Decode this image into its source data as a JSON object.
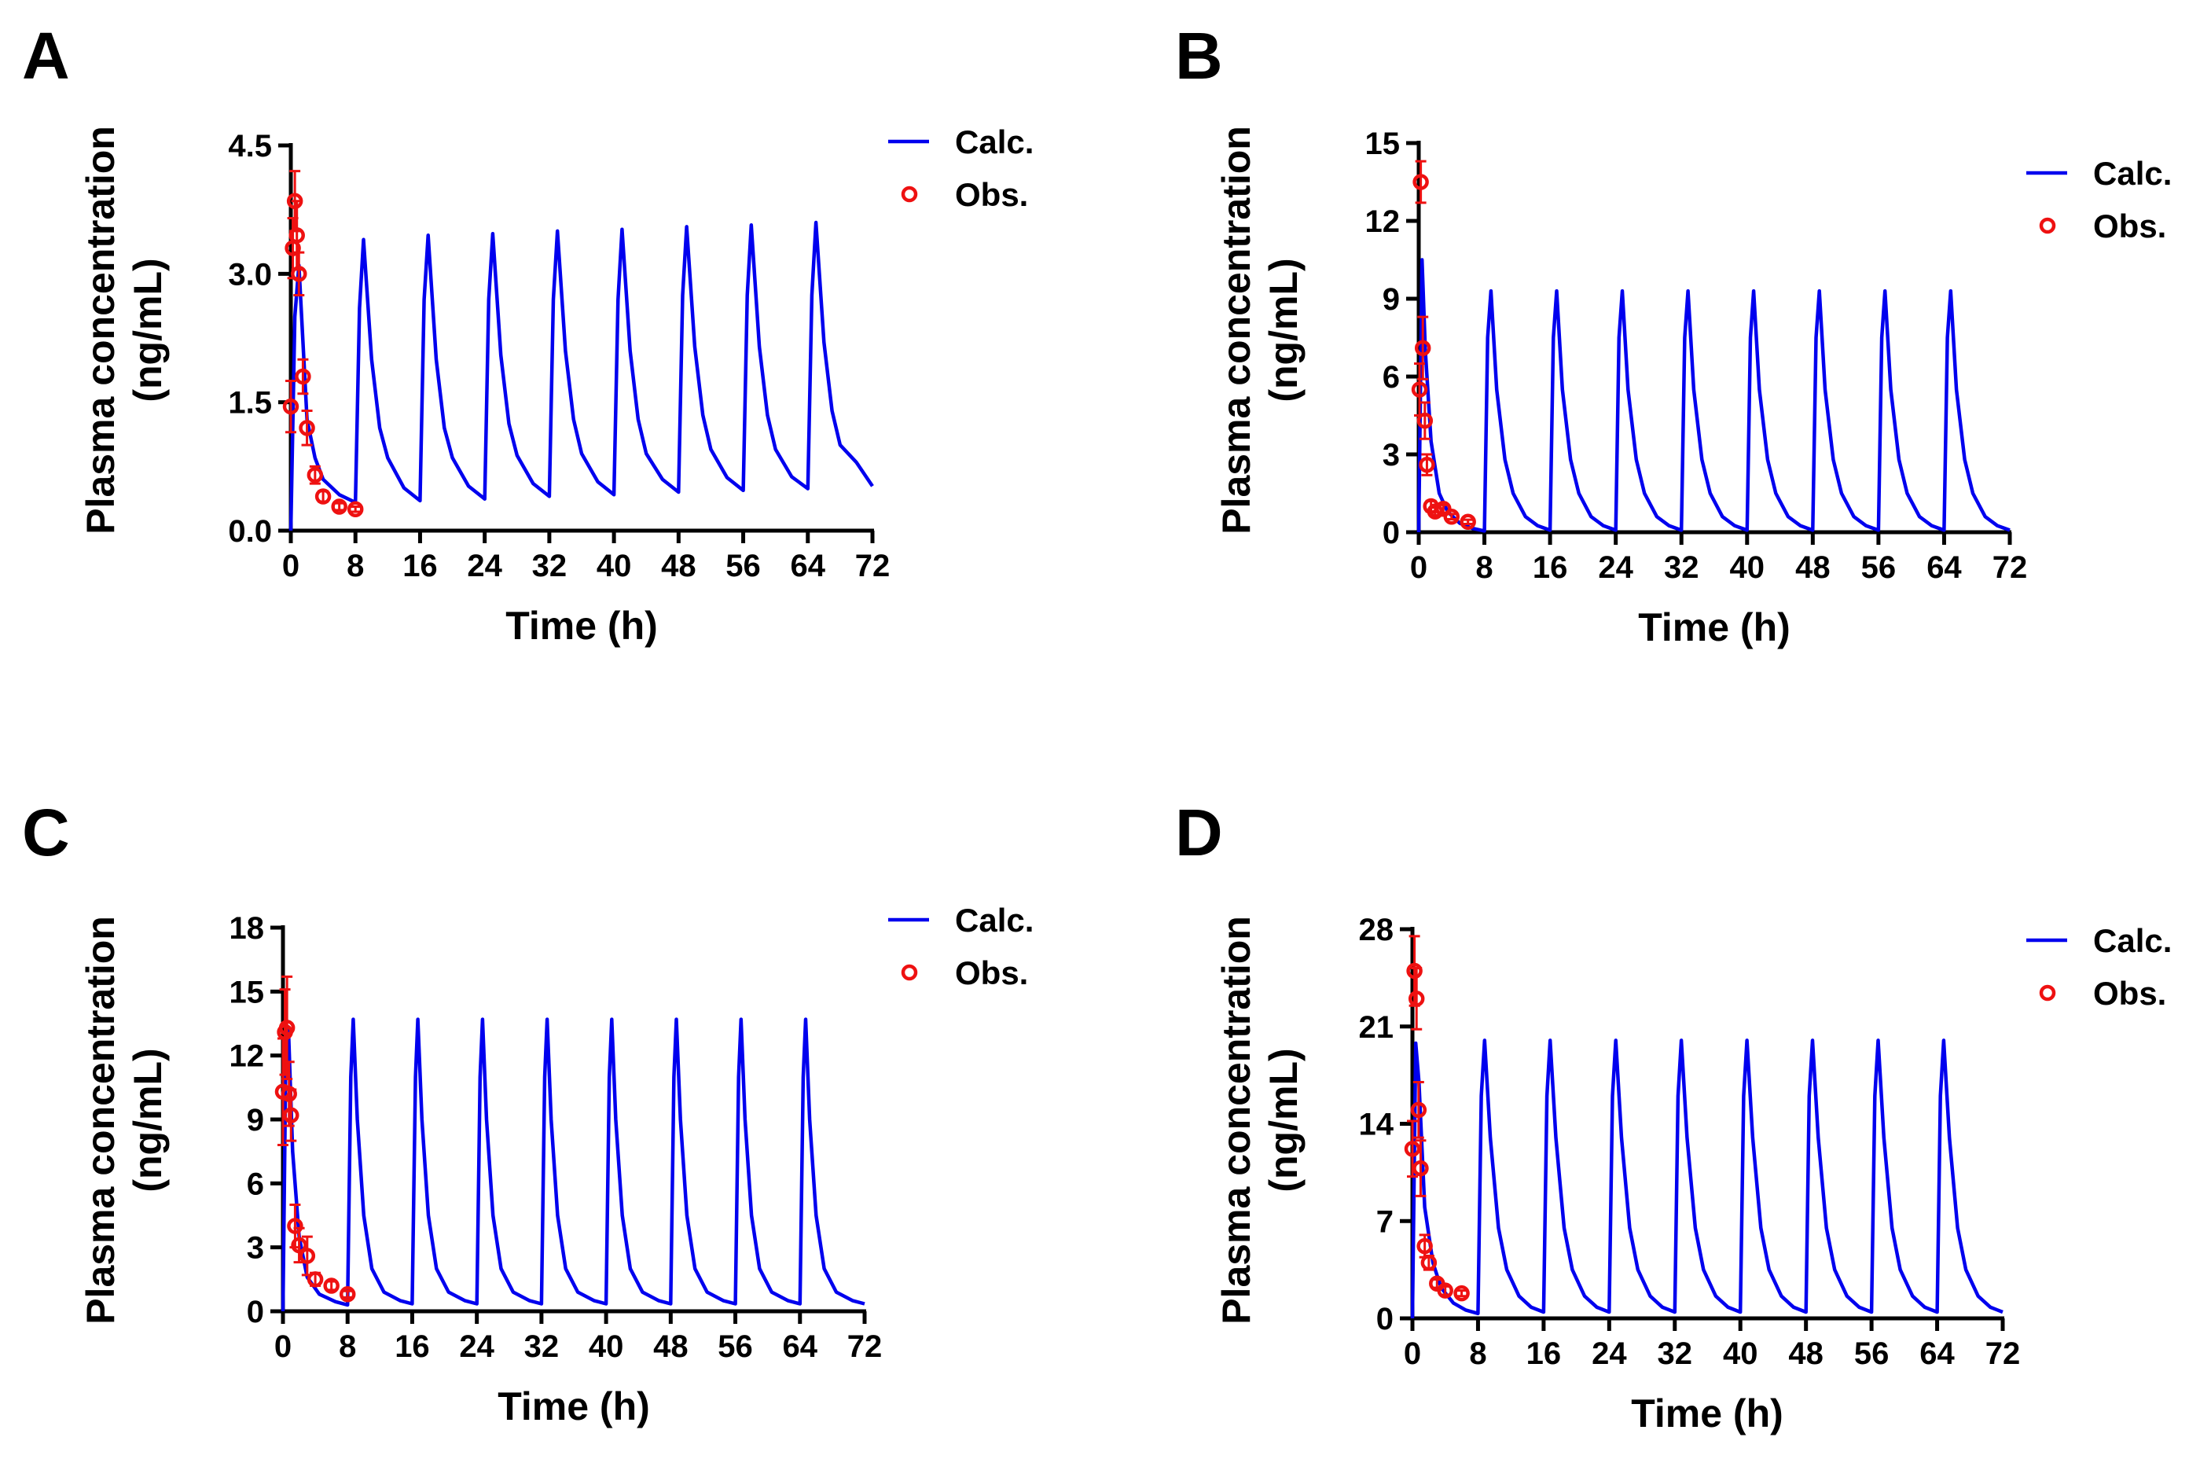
{
  "colors": {
    "calc": "#0000ee",
    "obs": "#ee1111",
    "axis": "#000000"
  },
  "chart_data": [
    {
      "type": "line",
      "panel": "A",
      "xlabel": "Time (h)",
      "ylabel_line1": "Plasma concentration",
      "ylabel_line2": "(ng/mL)",
      "xlim": [
        0,
        72
      ],
      "ylim": [
        0,
        4.5
      ],
      "x_ticks": [
        0,
        8,
        16,
        24,
        32,
        40,
        48,
        56,
        64,
        72
      ],
      "x_tick_labels": [
        "0",
        "8",
        "16",
        "24",
        "32",
        "40",
        "48",
        "56",
        "64",
        "72"
      ],
      "y_ticks": [
        0,
        1.5,
        3,
        4.5
      ],
      "y_tick_labels": [
        "0.0",
        "1.5",
        "3.0",
        "4.5"
      ],
      "legend": {
        "calc_label": "Calc.",
        "obs_label": "Obs.",
        "placement": "top-right"
      },
      "series": [
        {
          "name": "Calc.",
          "kind": "line",
          "x": [
            0,
            0.5,
            1,
            2,
            3,
            4,
            6,
            8,
            8.5,
            9,
            10,
            11,
            12,
            14,
            16,
            16.5,
            17,
            18,
            19,
            20,
            22,
            24,
            24.5,
            25,
            26,
            27,
            28,
            30,
            32,
            32.5,
            33,
            34,
            35,
            36,
            38,
            40,
            40.5,
            41,
            42,
            43,
            44,
            46,
            48,
            48.5,
            49,
            50,
            51,
            52,
            54,
            56,
            56.5,
            57,
            58,
            59,
            60,
            62,
            64,
            64.5,
            65,
            66,
            67,
            68,
            70,
            72
          ],
          "y": [
            0,
            2.5,
            3.1,
            1.3,
            0.85,
            0.6,
            0.42,
            0.33,
            2.6,
            3.4,
            2.0,
            1.2,
            0.85,
            0.5,
            0.35,
            2.7,
            3.45,
            2.0,
            1.2,
            0.85,
            0.52,
            0.37,
            2.7,
            3.47,
            2.05,
            1.25,
            0.88,
            0.55,
            0.4,
            2.7,
            3.5,
            2.1,
            1.3,
            0.9,
            0.57,
            0.42,
            2.7,
            3.52,
            2.1,
            1.3,
            0.9,
            0.6,
            0.45,
            2.75,
            3.55,
            2.15,
            1.35,
            0.95,
            0.62,
            0.47,
            2.75,
            3.57,
            2.15,
            1.35,
            0.95,
            0.63,
            0.49,
            2.75,
            3.6,
            2.2,
            1.4,
            1.0,
            0.8,
            0.52
          ]
        },
        {
          "name": "Obs.",
          "kind": "scatter",
          "x": [
            0.0,
            0.25,
            0.5,
            0.75,
            1.0,
            1.5,
            2.0,
            3.0,
            4.0,
            6.0,
            8.0
          ],
          "y": [
            1.45,
            3.3,
            3.85,
            3.45,
            3.0,
            1.8,
            1.2,
            0.65,
            0.4,
            0.28,
            0.25
          ],
          "err": [
            0.3,
            0.35,
            0.35,
            0.4,
            0.25,
            0.2,
            0.2,
            0.1,
            0.06,
            0.04,
            0.03
          ]
        }
      ]
    },
    {
      "type": "line",
      "panel": "B",
      "xlabel": "Time (h)",
      "ylabel_line1": "Plasma concentration",
      "ylabel_line2": "(ng/mL)",
      "xlim": [
        0,
        72
      ],
      "ylim": [
        0,
        15
      ],
      "x_ticks": [
        0,
        8,
        16,
        24,
        32,
        40,
        48,
        56,
        64,
        72
      ],
      "x_tick_labels": [
        "0",
        "8",
        "16",
        "24",
        "32",
        "40",
        "48",
        "56",
        "64",
        "72"
      ],
      "y_ticks": [
        0,
        3,
        6,
        9,
        12,
        15
      ],
      "y_tick_labels": [
        "0",
        "3",
        "6",
        "9",
        "12",
        "15"
      ],
      "legend": {
        "calc_label": "Calc.",
        "obs_label": "Obs.",
        "placement": "top-right"
      },
      "series": [
        {
          "name": "Calc.",
          "kind": "line",
          "x": [
            0,
            0.4,
            0.8,
            1.5,
            2.5,
            3.5,
            5,
            6.5,
            8,
            8.4,
            8.8,
            9.5,
            10.5,
            11.5,
            13,
            14.5,
            16,
            16.4,
            16.8,
            17.5,
            18.5,
            19.5,
            21,
            22.5,
            24,
            24.4,
            24.8,
            25.5,
            26.5,
            27.5,
            29,
            30.5,
            32,
            32.4,
            32.8,
            33.5,
            34.5,
            35.5,
            37,
            38.5,
            40,
            40.4,
            40.8,
            41.5,
            42.5,
            43.5,
            45,
            46.5,
            48,
            48.4,
            48.8,
            49.5,
            50.5,
            51.5,
            53,
            54.5,
            56,
            56.4,
            56.8,
            57.5,
            58.5,
            59.5,
            61,
            62.5,
            64,
            64.4,
            64.8,
            65.5,
            66.5,
            67.5,
            69,
            70.5,
            72
          ],
          "y": [
            0,
            10.5,
            7.0,
            3.5,
            1.5,
            0.8,
            0.35,
            0.15,
            0.05,
            7.5,
            9.3,
            5.5,
            2.8,
            1.5,
            0.6,
            0.25,
            0.08,
            7.5,
            9.3,
            5.5,
            2.8,
            1.5,
            0.6,
            0.25,
            0.08,
            7.5,
            9.3,
            5.5,
            2.8,
            1.5,
            0.6,
            0.25,
            0.08,
            7.5,
            9.3,
            5.5,
            2.8,
            1.5,
            0.6,
            0.25,
            0.08,
            7.5,
            9.3,
            5.5,
            2.8,
            1.5,
            0.6,
            0.25,
            0.08,
            7.5,
            9.3,
            5.5,
            2.8,
            1.5,
            0.6,
            0.25,
            0.08,
            7.5,
            9.3,
            5.5,
            2.8,
            1.5,
            0.6,
            0.25,
            0.08,
            7.5,
            9.3,
            5.5,
            2.8,
            1.5,
            0.6,
            0.25,
            0.08
          ]
        },
        {
          "name": "Obs.",
          "kind": "scatter",
          "x": [
            0.1,
            0.25,
            0.5,
            0.75,
            1.0,
            1.5,
            2.0,
            3.0,
            4.0,
            6.0
          ],
          "y": [
            5.5,
            13.5,
            7.1,
            4.3,
            2.6,
            1.0,
            0.8,
            0.9,
            0.6,
            0.4
          ],
          "err": [
            1.0,
            0.8,
            1.2,
            0.7,
            0.4,
            0.2,
            0.15,
            0.15,
            0.1,
            0.08
          ]
        }
      ]
    },
    {
      "type": "line",
      "panel": "C",
      "xlabel": "Time (h)",
      "ylabel_line1": "Plasma concentration",
      "ylabel_line2": "(ng/mL)",
      "xlim": [
        0,
        72
      ],
      "ylim": [
        0,
        18
      ],
      "x_ticks": [
        0,
        8,
        16,
        24,
        32,
        40,
        48,
        56,
        64,
        72
      ],
      "x_tick_labels": [
        "0",
        "8",
        "16",
        "24",
        "32",
        "40",
        "48",
        "56",
        "64",
        "72"
      ],
      "y_ticks": [
        0,
        3,
        6,
        9,
        12,
        15,
        18
      ],
      "y_tick_labels": [
        "0",
        "3",
        "6",
        "9",
        "12",
        "15",
        "18"
      ],
      "legend": {
        "calc_label": "Calc.",
        "obs_label": "Obs.",
        "placement": "top-right"
      },
      "series": [
        {
          "name": "Calc.",
          "kind": "line",
          "x": [
            0,
            0.4,
            0.7,
            1.2,
            2,
            3,
            4.5,
            6.5,
            8,
            8.4,
            8.7,
            9.2,
            10,
            11,
            12.5,
            14.5,
            16,
            16.4,
            16.7,
            17.2,
            18,
            19,
            20.5,
            22.5,
            24,
            24.4,
            24.7,
            25.2,
            26,
            27,
            28.5,
            30.5,
            32,
            32.4,
            32.7,
            33.2,
            34,
            35,
            36.5,
            38.5,
            40,
            40.4,
            40.7,
            41.2,
            42,
            43,
            44.5,
            46.5,
            48,
            48.4,
            48.7,
            49.2,
            50,
            51,
            52.5,
            54.5,
            56,
            56.4,
            56.7,
            57.2,
            58,
            59,
            60.5,
            62.5,
            64,
            64.4,
            64.7,
            65.2,
            66,
            67,
            68.5,
            70.5,
            72
          ],
          "y": [
            0,
            13.5,
            13.0,
            7.5,
            3.5,
            1.6,
            0.8,
            0.45,
            0.3,
            11.0,
            13.7,
            9.0,
            4.5,
            2.0,
            0.9,
            0.5,
            0.35,
            11.0,
            13.7,
            9.0,
            4.5,
            2.0,
            0.9,
            0.5,
            0.35,
            11.0,
            13.7,
            9.0,
            4.5,
            2.0,
            0.9,
            0.5,
            0.35,
            11.0,
            13.7,
            9.0,
            4.5,
            2.0,
            0.9,
            0.5,
            0.35,
            11.0,
            13.7,
            9.0,
            4.5,
            2.0,
            0.9,
            0.5,
            0.35,
            11.0,
            13.7,
            9.0,
            4.5,
            2.0,
            0.9,
            0.5,
            0.35,
            11.0,
            13.7,
            9.0,
            4.5,
            2.0,
            0.9,
            0.5,
            0.35,
            11.0,
            13.7,
            9.0,
            4.5,
            2.0,
            0.9,
            0.5,
            0.35
          ]
        },
        {
          "name": "Obs.",
          "kind": "scatter",
          "x": [
            0.0,
            0.25,
            0.5,
            0.75,
            1.0,
            1.5,
            2.0,
            3.0,
            4.0,
            6.0,
            8.0
          ],
          "y": [
            10.3,
            13.1,
            13.3,
            10.2,
            9.2,
            4.0,
            3.1,
            2.6,
            1.5,
            1.2,
            0.8
          ],
          "err": [
            2.5,
            2.0,
            2.4,
            1.5,
            1.2,
            1.0,
            0.8,
            0.9,
            0.3,
            0.2,
            0.15
          ]
        }
      ]
    },
    {
      "type": "line",
      "panel": "D",
      "xlabel": "Time (h)",
      "ylabel_line1": "Plasma concentration",
      "ylabel_line2": "(ng/mL)",
      "xlim": [
        0,
        72
      ],
      "ylim": [
        0,
        28
      ],
      "x_ticks": [
        0,
        8,
        16,
        24,
        32,
        40,
        48,
        56,
        64,
        72
      ],
      "x_tick_labels": [
        "0",
        "8",
        "16",
        "24",
        "32",
        "40",
        "48",
        "56",
        "64",
        "72"
      ],
      "y_ticks": [
        0,
        7,
        14,
        21,
        28
      ],
      "y_tick_labels": [
        "0",
        "7",
        "14",
        "21",
        "28"
      ],
      "legend": {
        "calc_label": "Calc.",
        "obs_label": "Obs.",
        "placement": "top-right"
      },
      "series": [
        {
          "name": "Calc.",
          "kind": "line",
          "x": [
            0,
            0.4,
            0.8,
            1.5,
            2.5,
            3.5,
            5,
            6.5,
            8,
            8.4,
            8.8,
            9.5,
            10.5,
            11.5,
            13,
            14.5,
            16,
            16.4,
            16.8,
            17.5,
            18.5,
            19.5,
            21,
            22.5,
            24,
            24.4,
            24.8,
            25.5,
            26.5,
            27.5,
            29,
            30.5,
            32,
            32.4,
            32.8,
            33.5,
            34.5,
            35.5,
            37,
            38.5,
            40,
            40.4,
            40.8,
            41.5,
            42.5,
            43.5,
            45,
            46.5,
            48,
            48.4,
            48.8,
            49.5,
            50.5,
            51.5,
            53,
            54.5,
            56,
            56.4,
            56.8,
            57.5,
            58.5,
            59.5,
            61,
            62.5,
            64,
            64.4,
            64.8,
            65.5,
            66.5,
            67.5,
            69,
            70.5,
            72
          ],
          "y": [
            0,
            19.8,
            17.0,
            8.0,
            4.0,
            2.2,
            1.1,
            0.6,
            0.35,
            16.0,
            20.0,
            13.0,
            6.5,
            3.5,
            1.6,
            0.8,
            0.45,
            16.0,
            20.0,
            13.0,
            6.5,
            3.5,
            1.6,
            0.8,
            0.45,
            16.0,
            20.0,
            13.0,
            6.5,
            3.5,
            1.6,
            0.8,
            0.45,
            16.0,
            20.0,
            13.0,
            6.5,
            3.5,
            1.6,
            0.8,
            0.45,
            16.0,
            20.0,
            13.0,
            6.5,
            3.5,
            1.6,
            0.8,
            0.45,
            16.0,
            20.0,
            13.0,
            6.5,
            3.5,
            1.6,
            0.8,
            0.45,
            16.0,
            20.0,
            13.0,
            6.5,
            3.5,
            1.6,
            0.8,
            0.45,
            16.0,
            20.0,
            13.0,
            6.5,
            3.5,
            1.6,
            0.8,
            0.45
          ]
        },
        {
          "name": "Obs.",
          "kind": "scatter",
          "x": [
            0.0,
            0.25,
            0.5,
            0.75,
            1.0,
            1.5,
            2.0,
            3.0,
            4.0,
            6.0
          ],
          "y": [
            12.2,
            25.0,
            23.0,
            15.0,
            10.8,
            5.2,
            4.0,
            2.5,
            2.0,
            1.8
          ],
          "err": [
            2.0,
            2.5,
            2.2,
            2.0,
            2.0,
            0.8,
            0.5,
            0.3,
            0.3,
            0.2
          ]
        }
      ]
    }
  ]
}
